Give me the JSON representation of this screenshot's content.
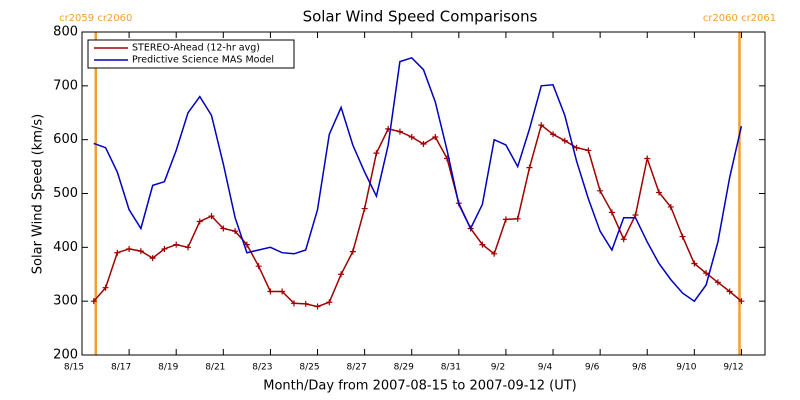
{
  "chart_data": {
    "type": "line",
    "title": "Solar Wind Speed Comparisons",
    "xlabel": "Month/Day from 2007-08-15 to 2007-09-12 (UT)",
    "ylabel": "Solar Wind Speed (km/s)",
    "xlim": [
      "2007-08-15T00:00",
      "2007-09-13T00:00"
    ],
    "ylim": [
      200,
      800
    ],
    "yticks": [
      200,
      300,
      400,
      500,
      600,
      700,
      800
    ],
    "xticks": [
      {
        "value": "2007-08-15T00:00",
        "label": "8/15"
      },
      {
        "value": "2007-08-17T00:00",
        "label": "8/17"
      },
      {
        "value": "2007-08-19T00:00",
        "label": "8/19"
      },
      {
        "value": "2007-08-21T00:00",
        "label": "8/21"
      },
      {
        "value": "2007-08-23T00:00",
        "label": "8/23"
      },
      {
        "value": "2007-08-25T00:00",
        "label": "8/25"
      },
      {
        "value": "2007-08-27T00:00",
        "label": "8/27"
      },
      {
        "value": "2007-08-29T00:00",
        "label": "8/29"
      },
      {
        "value": "2007-08-31T00:00",
        "label": "8/31"
      },
      {
        "value": "2007-09-02T00:00",
        "label": "9/2"
      },
      {
        "value": "2007-09-04T00:00",
        "label": "9/4"
      },
      {
        "value": "2007-09-06T00:00",
        "label": "9/6"
      },
      {
        "value": "2007-09-08T00:00",
        "label": "9/8"
      },
      {
        "value": "2007-09-10T00:00",
        "label": "9/10"
      },
      {
        "value": "2007-09-12T00:00",
        "label": "9/12"
      }
    ],
    "vlines": [
      {
        "x": "2007-08-15T14:00",
        "label": "cr2059 cr2060",
        "color": "#f0a030"
      },
      {
        "x": "2007-09-11T22:00",
        "label": "cr2060 cr2061",
        "color": "#f0a030"
      }
    ],
    "legend": "upper left",
    "x": [
      "2007-08-15T12:00",
      "2007-08-16T00:00",
      "2007-08-16T12:00",
      "2007-08-17T00:00",
      "2007-08-17T12:00",
      "2007-08-18T00:00",
      "2007-08-18T12:00",
      "2007-08-19T00:00",
      "2007-08-19T12:00",
      "2007-08-20T00:00",
      "2007-08-20T12:00",
      "2007-08-21T00:00",
      "2007-08-21T12:00",
      "2007-08-22T00:00",
      "2007-08-22T12:00",
      "2007-08-23T00:00",
      "2007-08-23T12:00",
      "2007-08-24T00:00",
      "2007-08-24T12:00",
      "2007-08-25T00:00",
      "2007-08-25T12:00",
      "2007-08-26T00:00",
      "2007-08-26T12:00",
      "2007-08-27T00:00",
      "2007-08-27T12:00",
      "2007-08-28T00:00",
      "2007-08-28T12:00",
      "2007-08-29T00:00",
      "2007-08-29T12:00",
      "2007-08-30T00:00",
      "2007-08-30T12:00",
      "2007-08-31T00:00",
      "2007-08-31T12:00",
      "2007-09-01T00:00",
      "2007-09-01T12:00",
      "2007-09-02T00:00",
      "2007-09-02T12:00",
      "2007-09-03T00:00",
      "2007-09-03T12:00",
      "2007-09-04T00:00",
      "2007-09-04T12:00",
      "2007-09-05T00:00",
      "2007-09-05T12:00",
      "2007-09-06T00:00",
      "2007-09-06T12:00",
      "2007-09-07T00:00",
      "2007-09-07T12:00",
      "2007-09-08T00:00",
      "2007-09-08T12:00",
      "2007-09-09T00:00",
      "2007-09-09T12:00",
      "2007-09-10T00:00",
      "2007-09-10T12:00",
      "2007-09-11T00:00",
      "2007-09-11T12:00",
      "2007-09-12T00:00"
    ],
    "series": [
      {
        "name": "STEREO-Ahead (12-hr avg)",
        "color": "#a00000",
        "marker": "+",
        "values": [
          300,
          325,
          390,
          397,
          393,
          380,
          397,
          405,
          400,
          448,
          458,
          435,
          430,
          405,
          365,
          318,
          318,
          296,
          295,
          290,
          298,
          350,
          392,
          472,
          575,
          620,
          615,
          605,
          592,
          605,
          565,
          482,
          435,
          405,
          388,
          452,
          453,
          548,
          627,
          610,
          598,
          585,
          580,
          505,
          465,
          415,
          460,
          565,
          502,
          475,
          420,
          370,
          352,
          335,
          318,
          300
        ]
      },
      {
        "name": "Predictive Science MAS Model",
        "color": "#0000c0",
        "values": [
          593,
          585,
          540,
          470,
          435,
          515,
          522,
          580,
          650,
          680,
          645,
          555,
          455,
          390,
          395,
          400,
          390,
          388,
          395,
          470,
          610,
          660,
          590,
          540,
          495,
          590,
          745,
          752,
          730,
          670,
          580,
          480,
          435,
          480,
          600,
          590,
          550,
          620,
          700,
          702,
          645,
          560,
          490,
          430,
          395,
          455,
          455,
          410,
          370,
          340,
          315,
          300,
          330,
          410,
          530,
          625
        ]
      }
    ]
  }
}
